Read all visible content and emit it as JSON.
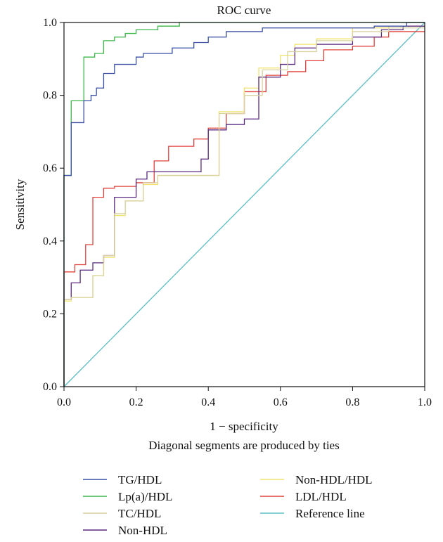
{
  "chart_data": {
    "type": "line",
    "title": "ROC curve",
    "xlabel": "1 − specificity",
    "ylabel": "Sensitivity",
    "note": "Diagonal segments are produced by ties",
    "xlim": [
      0,
      1
    ],
    "ylim": [
      0,
      1
    ],
    "x_ticks": [
      "0.0",
      "0.2",
      "0.4",
      "0.6",
      "0.8",
      "1.0"
    ],
    "y_ticks": [
      "0.0",
      "0.2",
      "0.4",
      "0.6",
      "0.8",
      "1.0"
    ],
    "grid": false,
    "legend_position": "bottom",
    "series": [
      {
        "name": "TG/HDL",
        "color": "#3a4fa6",
        "points": [
          [
            0,
            0
          ],
          [
            0,
            0.58
          ],
          [
            0.02,
            0.58
          ],
          [
            0.02,
            0.725
          ],
          [
            0.055,
            0.725
          ],
          [
            0.055,
            0.785
          ],
          [
            0.075,
            0.785
          ],
          [
            0.075,
            0.8
          ],
          [
            0.09,
            0.8
          ],
          [
            0.09,
            0.82
          ],
          [
            0.11,
            0.82
          ],
          [
            0.11,
            0.86
          ],
          [
            0.14,
            0.86
          ],
          [
            0.14,
            0.885
          ],
          [
            0.2,
            0.885
          ],
          [
            0.2,
            0.905
          ],
          [
            0.22,
            0.905
          ],
          [
            0.22,
            0.915
          ],
          [
            0.3,
            0.915
          ],
          [
            0.3,
            0.93
          ],
          [
            0.36,
            0.93
          ],
          [
            0.36,
            0.945
          ],
          [
            0.4,
            0.945
          ],
          [
            0.4,
            0.96
          ],
          [
            0.45,
            0.96
          ],
          [
            0.45,
            0.975
          ],
          [
            0.55,
            0.975
          ],
          [
            0.55,
            0.985
          ],
          [
            0.86,
            0.985
          ],
          [
            0.86,
            0.99
          ],
          [
            0.95,
            0.99
          ],
          [
            0.95,
            1.0
          ],
          [
            1,
            1
          ]
        ]
      },
      {
        "name": "Lp(a)/HDL",
        "color": "#3cb64a",
        "points": [
          [
            0,
            0
          ],
          [
            0,
            0.58
          ],
          [
            0.02,
            0.58
          ],
          [
            0.02,
            0.785
          ],
          [
            0.055,
            0.785
          ],
          [
            0.055,
            0.905
          ],
          [
            0.085,
            0.905
          ],
          [
            0.085,
            0.915
          ],
          [
            0.11,
            0.915
          ],
          [
            0.11,
            0.95
          ],
          [
            0.14,
            0.95
          ],
          [
            0.14,
            0.96
          ],
          [
            0.17,
            0.96
          ],
          [
            0.17,
            0.97
          ],
          [
            0.2,
            0.97
          ],
          [
            0.2,
            0.98
          ],
          [
            0.26,
            0.98
          ],
          [
            0.26,
            0.99
          ],
          [
            0.32,
            0.99
          ],
          [
            0.32,
            1.0
          ],
          [
            1,
            1.0
          ]
        ]
      },
      {
        "name": "TC/HDL",
        "color": "#d9d2a0",
        "points": [
          [
            0,
            0
          ],
          [
            0,
            0.24
          ],
          [
            0.02,
            0.24
          ],
          [
            0.02,
            0.245
          ],
          [
            0.08,
            0.245
          ],
          [
            0.08,
            0.305
          ],
          [
            0.11,
            0.305
          ],
          [
            0.11,
            0.36
          ],
          [
            0.14,
            0.36
          ],
          [
            0.14,
            0.475
          ],
          [
            0.17,
            0.475
          ],
          [
            0.17,
            0.51
          ],
          [
            0.22,
            0.51
          ],
          [
            0.22,
            0.56
          ],
          [
            0.26,
            0.56
          ],
          [
            0.26,
            0.58
          ],
          [
            0.43,
            0.58
          ],
          [
            0.43,
            0.75
          ],
          [
            0.5,
            0.75
          ],
          [
            0.5,
            0.8
          ],
          [
            0.55,
            0.8
          ],
          [
            0.55,
            0.87
          ],
          [
            0.62,
            0.87
          ],
          [
            0.62,
            0.92
          ],
          [
            0.7,
            0.92
          ],
          [
            0.7,
            0.95
          ],
          [
            0.8,
            0.95
          ],
          [
            0.8,
            0.975
          ],
          [
            0.9,
            0.975
          ],
          [
            0.9,
            0.985
          ],
          [
            1,
            0.985
          ]
        ]
      },
      {
        "name": "Non-HDL",
        "color": "#5a2a82",
        "points": [
          [
            0,
            0
          ],
          [
            0,
            0.24
          ],
          [
            0.02,
            0.24
          ],
          [
            0.02,
            0.285
          ],
          [
            0.045,
            0.285
          ],
          [
            0.045,
            0.32
          ],
          [
            0.08,
            0.32
          ],
          [
            0.08,
            0.34
          ],
          [
            0.11,
            0.34
          ],
          [
            0.11,
            0.36
          ],
          [
            0.14,
            0.36
          ],
          [
            0.14,
            0.52
          ],
          [
            0.2,
            0.52
          ],
          [
            0.2,
            0.57
          ],
          [
            0.23,
            0.57
          ],
          [
            0.23,
            0.59
          ],
          [
            0.38,
            0.59
          ],
          [
            0.38,
            0.625
          ],
          [
            0.4,
            0.625
          ],
          [
            0.4,
            0.705
          ],
          [
            0.45,
            0.705
          ],
          [
            0.45,
            0.72
          ],
          [
            0.5,
            0.72
          ],
          [
            0.5,
            0.735
          ],
          [
            0.54,
            0.735
          ],
          [
            0.54,
            0.85
          ],
          [
            0.6,
            0.85
          ],
          [
            0.6,
            0.885
          ],
          [
            0.64,
            0.885
          ],
          [
            0.64,
            0.93
          ],
          [
            0.7,
            0.93
          ],
          [
            0.7,
            0.94
          ],
          [
            0.8,
            0.94
          ],
          [
            0.8,
            0.96
          ],
          [
            0.88,
            0.96
          ],
          [
            0.88,
            0.98
          ],
          [
            0.94,
            0.98
          ],
          [
            0.94,
            0.99
          ],
          [
            1,
            0.99
          ]
        ]
      },
      {
        "name": "Non-HDL/HDL",
        "color": "#f0e36a",
        "points": [
          [
            0,
            0
          ],
          [
            0,
            0.235
          ],
          [
            0.02,
            0.235
          ],
          [
            0.02,
            0.245
          ],
          [
            0.08,
            0.245
          ],
          [
            0.08,
            0.305
          ],
          [
            0.11,
            0.305
          ],
          [
            0.11,
            0.355
          ],
          [
            0.14,
            0.355
          ],
          [
            0.14,
            0.47
          ],
          [
            0.17,
            0.47
          ],
          [
            0.17,
            0.51
          ],
          [
            0.22,
            0.51
          ],
          [
            0.22,
            0.555
          ],
          [
            0.26,
            0.555
          ],
          [
            0.26,
            0.58
          ],
          [
            0.43,
            0.58
          ],
          [
            0.43,
            0.755
          ],
          [
            0.5,
            0.755
          ],
          [
            0.5,
            0.82
          ],
          [
            0.54,
            0.82
          ],
          [
            0.54,
            0.875
          ],
          [
            0.6,
            0.875
          ],
          [
            0.6,
            0.91
          ],
          [
            0.64,
            0.91
          ],
          [
            0.64,
            0.94
          ],
          [
            0.7,
            0.94
          ],
          [
            0.7,
            0.955
          ],
          [
            0.8,
            0.955
          ],
          [
            0.8,
            0.985
          ],
          [
            0.9,
            0.985
          ],
          [
            0.9,
            0.99
          ],
          [
            1,
            0.99
          ]
        ]
      },
      {
        "name": "LDL/HDL",
        "color": "#e2403a",
        "points": [
          [
            0,
            0
          ],
          [
            0,
            0.315
          ],
          [
            0.03,
            0.315
          ],
          [
            0.03,
            0.335
          ],
          [
            0.06,
            0.335
          ],
          [
            0.06,
            0.39
          ],
          [
            0.08,
            0.39
          ],
          [
            0.08,
            0.52
          ],
          [
            0.11,
            0.52
          ],
          [
            0.11,
            0.545
          ],
          [
            0.14,
            0.545
          ],
          [
            0.14,
            0.55
          ],
          [
            0.2,
            0.55
          ],
          [
            0.2,
            0.56
          ],
          [
            0.25,
            0.56
          ],
          [
            0.25,
            0.62
          ],
          [
            0.29,
            0.62
          ],
          [
            0.29,
            0.66
          ],
          [
            0.36,
            0.66
          ],
          [
            0.36,
            0.68
          ],
          [
            0.4,
            0.68
          ],
          [
            0.4,
            0.71
          ],
          [
            0.45,
            0.71
          ],
          [
            0.45,
            0.75
          ],
          [
            0.5,
            0.75
          ],
          [
            0.5,
            0.81
          ],
          [
            0.56,
            0.81
          ],
          [
            0.56,
            0.855
          ],
          [
            0.62,
            0.855
          ],
          [
            0.62,
            0.865
          ],
          [
            0.67,
            0.865
          ],
          [
            0.67,
            0.895
          ],
          [
            0.72,
            0.895
          ],
          [
            0.72,
            0.925
          ],
          [
            0.8,
            0.925
          ],
          [
            0.8,
            0.935
          ],
          [
            0.86,
            0.935
          ],
          [
            0.86,
            0.96
          ],
          [
            0.9,
            0.96
          ],
          [
            0.9,
            0.975
          ],
          [
            1,
            0.975
          ]
        ]
      },
      {
        "name": "Reference line",
        "color": "#5bbfc6",
        "points": [
          [
            0,
            0
          ],
          [
            1,
            1
          ]
        ]
      }
    ]
  }
}
